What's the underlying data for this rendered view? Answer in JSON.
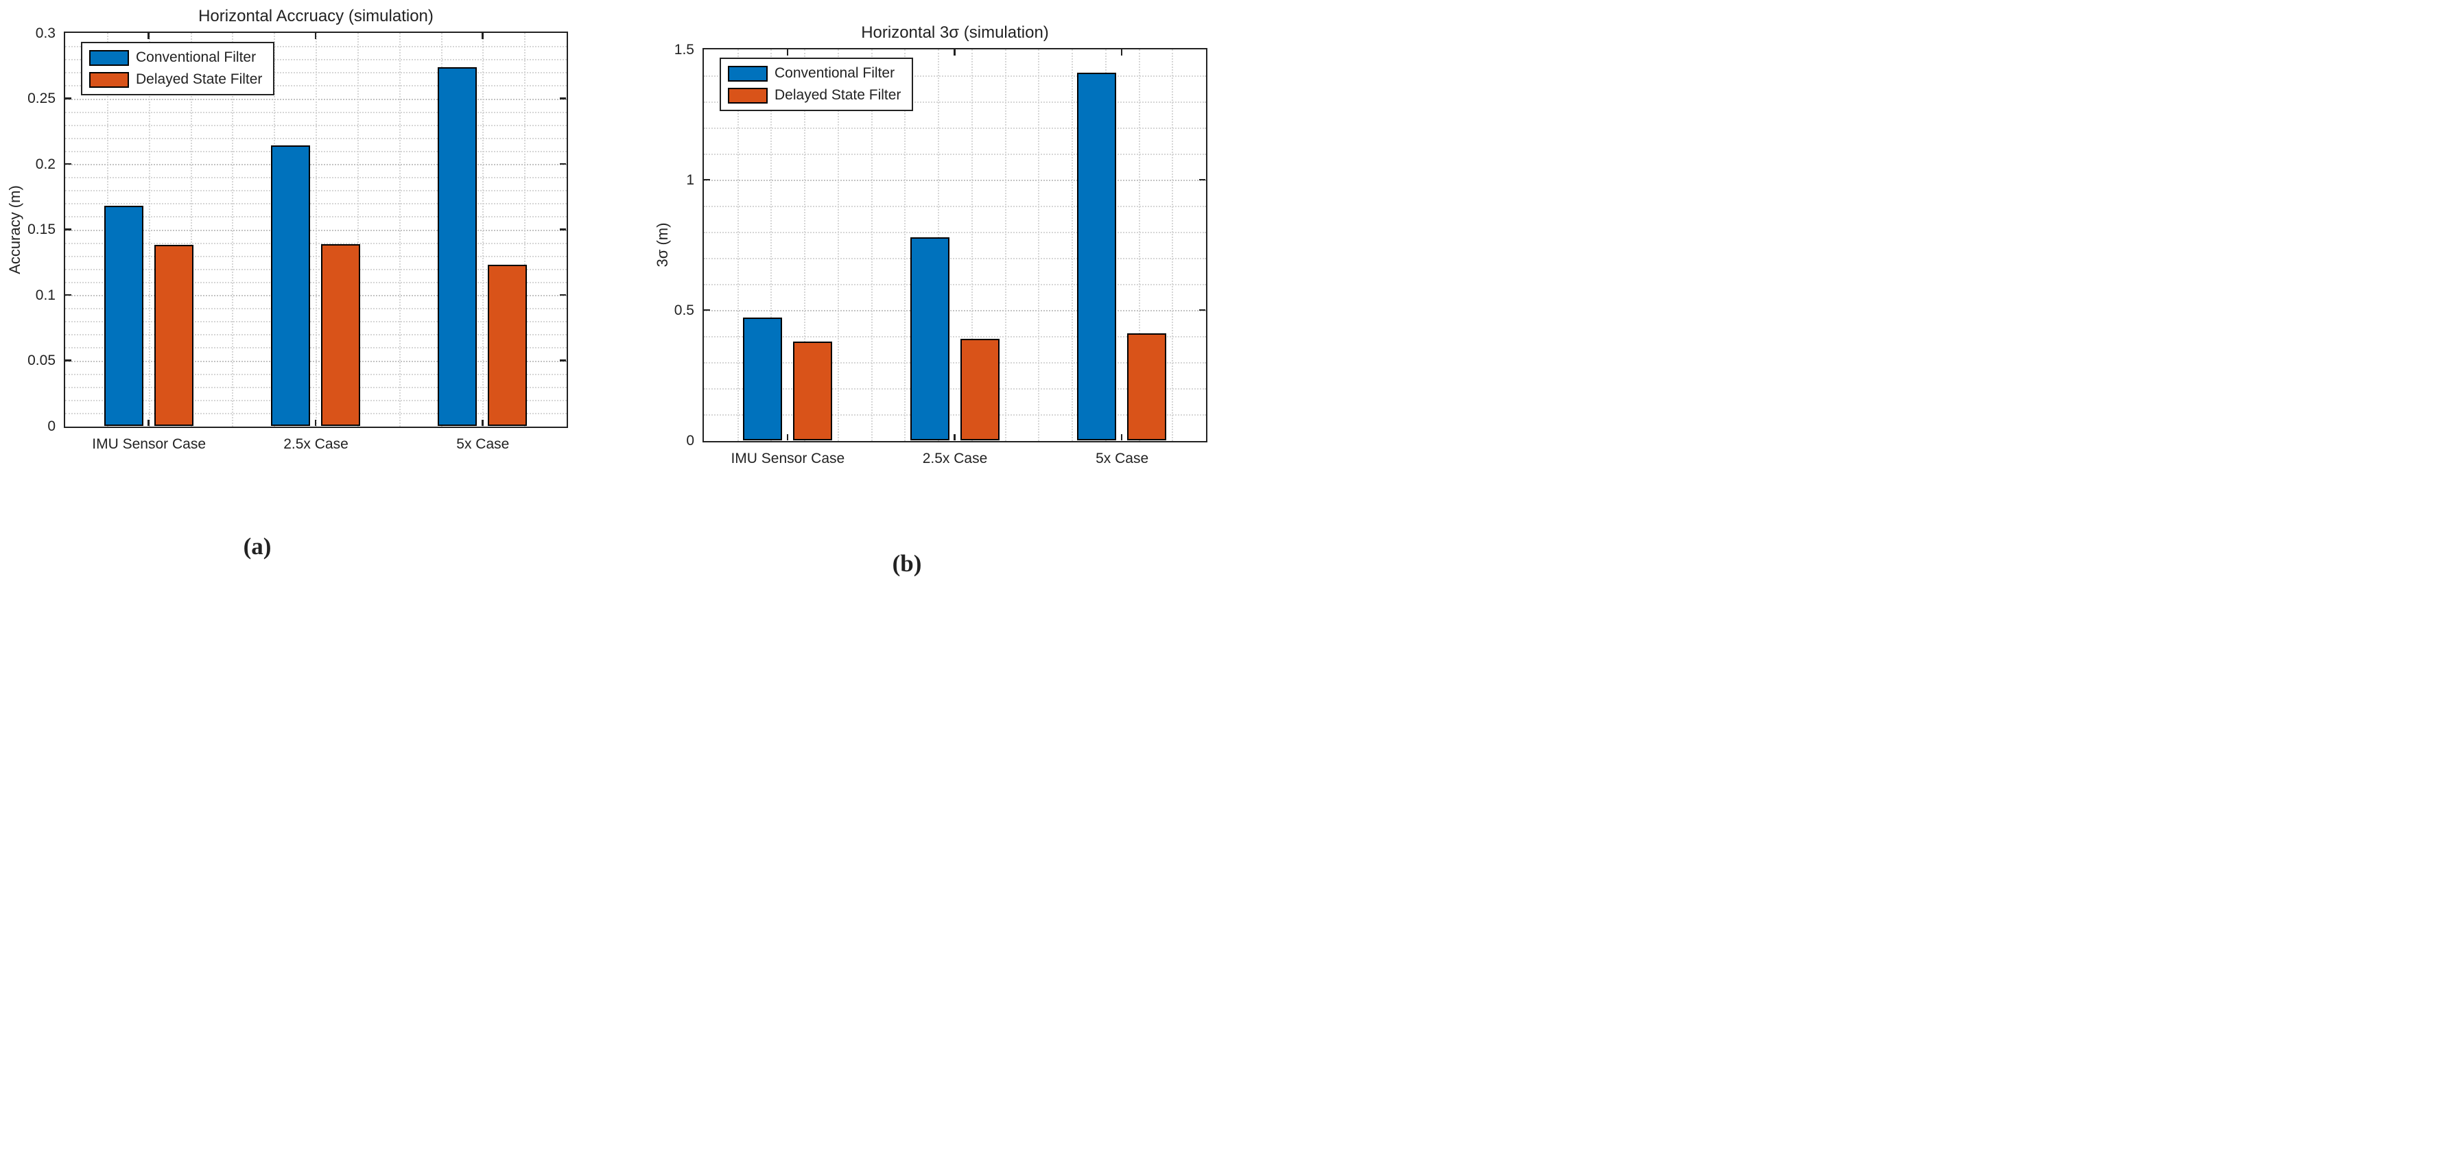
{
  "figure": {
    "background": "#ffffff"
  },
  "legend": {
    "items": [
      {
        "label": "Conventional Filter",
        "color": "#0072BD"
      },
      {
        "label": "Delayed State Filter",
        "color": "#D95319"
      }
    ]
  },
  "chart_data": [
    {
      "type": "bar",
      "caption": "(a)",
      "title": "Horizontal Accruacy (simulation)",
      "ylabel": "Accuracy (m)",
      "xlabel": "",
      "categories": [
        "IMU Sensor Case",
        "2.5x Case",
        "5x Case"
      ],
      "series": [
        {
          "name": "Conventional Filter",
          "color": "#0072BD",
          "values": [
            0.168,
            0.214,
            0.274
          ]
        },
        {
          "name": "Delayed State Filter",
          "color": "#D95319",
          "values": [
            0.138,
            0.139,
            0.123
          ]
        }
      ],
      "ylim": [
        0,
        0.3
      ],
      "yticks": [
        {
          "v": 0,
          "label": "0"
        },
        {
          "v": 0.05,
          "label": "0.05"
        },
        {
          "v": 0.1,
          "label": "0.1"
        },
        {
          "v": 0.15,
          "label": "0.15"
        },
        {
          "v": 0.2,
          "label": "0.2"
        },
        {
          "v": 0.25,
          "label": "0.25"
        },
        {
          "v": 0.3,
          "label": "0.3"
        }
      ],
      "y_minor_step": 0.01,
      "x_minor_divisions": 12,
      "grid": "dotted",
      "legend_position": "top-left"
    },
    {
      "type": "bar",
      "caption": "(b)",
      "title": "Horizontal 3σ (simulation)",
      "ylabel": "3σ (m)",
      "xlabel": "",
      "categories": [
        "IMU Sensor Case",
        "2.5x Case",
        "5x Case"
      ],
      "series": [
        {
          "name": "Conventional Filter",
          "color": "#0072BD",
          "values": [
            0.47,
            0.78,
            1.41
          ]
        },
        {
          "name": "Delayed State Filter",
          "color": "#D95319",
          "values": [
            0.38,
            0.39,
            0.41
          ]
        }
      ],
      "ylim": [
        0,
        1.5
      ],
      "yticks": [
        {
          "v": 0,
          "label": "0"
        },
        {
          "v": 0.5,
          "label": "0.5"
        },
        {
          "v": 1,
          "label": "1"
        },
        {
          "v": 1.5,
          "label": "1.5"
        }
      ],
      "y_minor_step": 0.1,
      "x_minor_divisions": 15,
      "grid": "dotted",
      "legend_position": "top-left"
    }
  ]
}
